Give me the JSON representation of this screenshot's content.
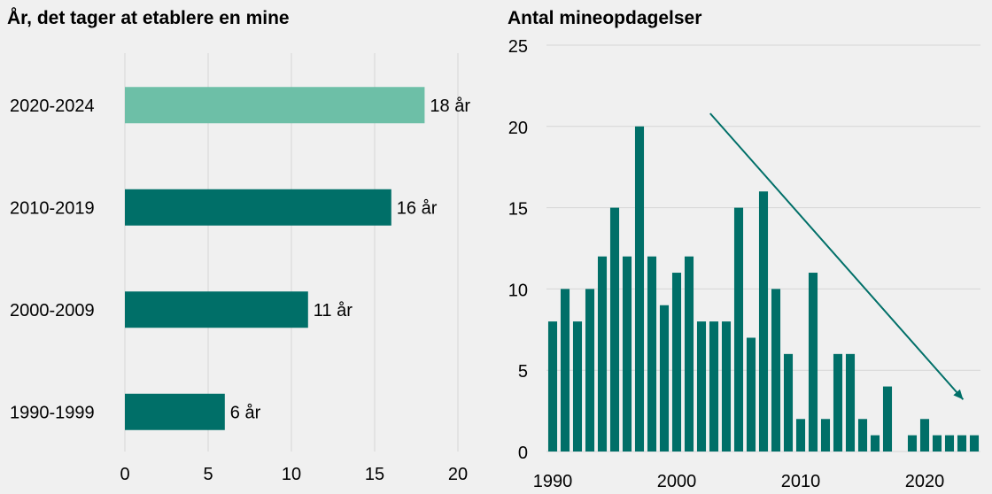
{
  "chart_data": [
    {
      "type": "bar",
      "orientation": "horizontal",
      "title": "År, det tager at etablere en mine",
      "categories": [
        "2020-2024",
        "2010-2019",
        "2000-2009",
        "1990-1999"
      ],
      "values": [
        18,
        16,
        11,
        6
      ],
      "data_labels": [
        "18 år",
        "16 år",
        "11 år",
        "6 år"
      ],
      "bar_colors": [
        "#6dbfa7",
        "#006f68",
        "#006f68",
        "#006f68"
      ],
      "xlim": [
        0,
        20
      ],
      "xticks": [
        0,
        5,
        10,
        15,
        20
      ],
      "grid": "vertical"
    },
    {
      "type": "bar",
      "title": "Antal mineopdagelser",
      "x": [
        1990,
        1991,
        1992,
        1993,
        1994,
        1995,
        1996,
        1997,
        1998,
        1999,
        2000,
        2001,
        2002,
        2003,
        2004,
        2005,
        2006,
        2007,
        2008,
        2009,
        2010,
        2011,
        2012,
        2013,
        2014,
        2015,
        2016,
        2017,
        2018,
        2019,
        2020,
        2021,
        2022,
        2023,
        2024
      ],
      "values": [
        8,
        10,
        8,
        10,
        12,
        15,
        12,
        20,
        12,
        9,
        11,
        12,
        8,
        8,
        8,
        15,
        7,
        16,
        10,
        6,
        2,
        11,
        2,
        6,
        6,
        2,
        1,
        4,
        0,
        1,
        2,
        1,
        1,
        1,
        1
      ],
      "ylim": [
        0,
        25
      ],
      "yticks": [
        0,
        5,
        10,
        15,
        20,
        25
      ],
      "xticks": [
        1990,
        2000,
        2010,
        2020
      ],
      "bar_color": "#006f68",
      "grid": "horizontal",
      "annotation": "downward trend arrow"
    }
  ]
}
